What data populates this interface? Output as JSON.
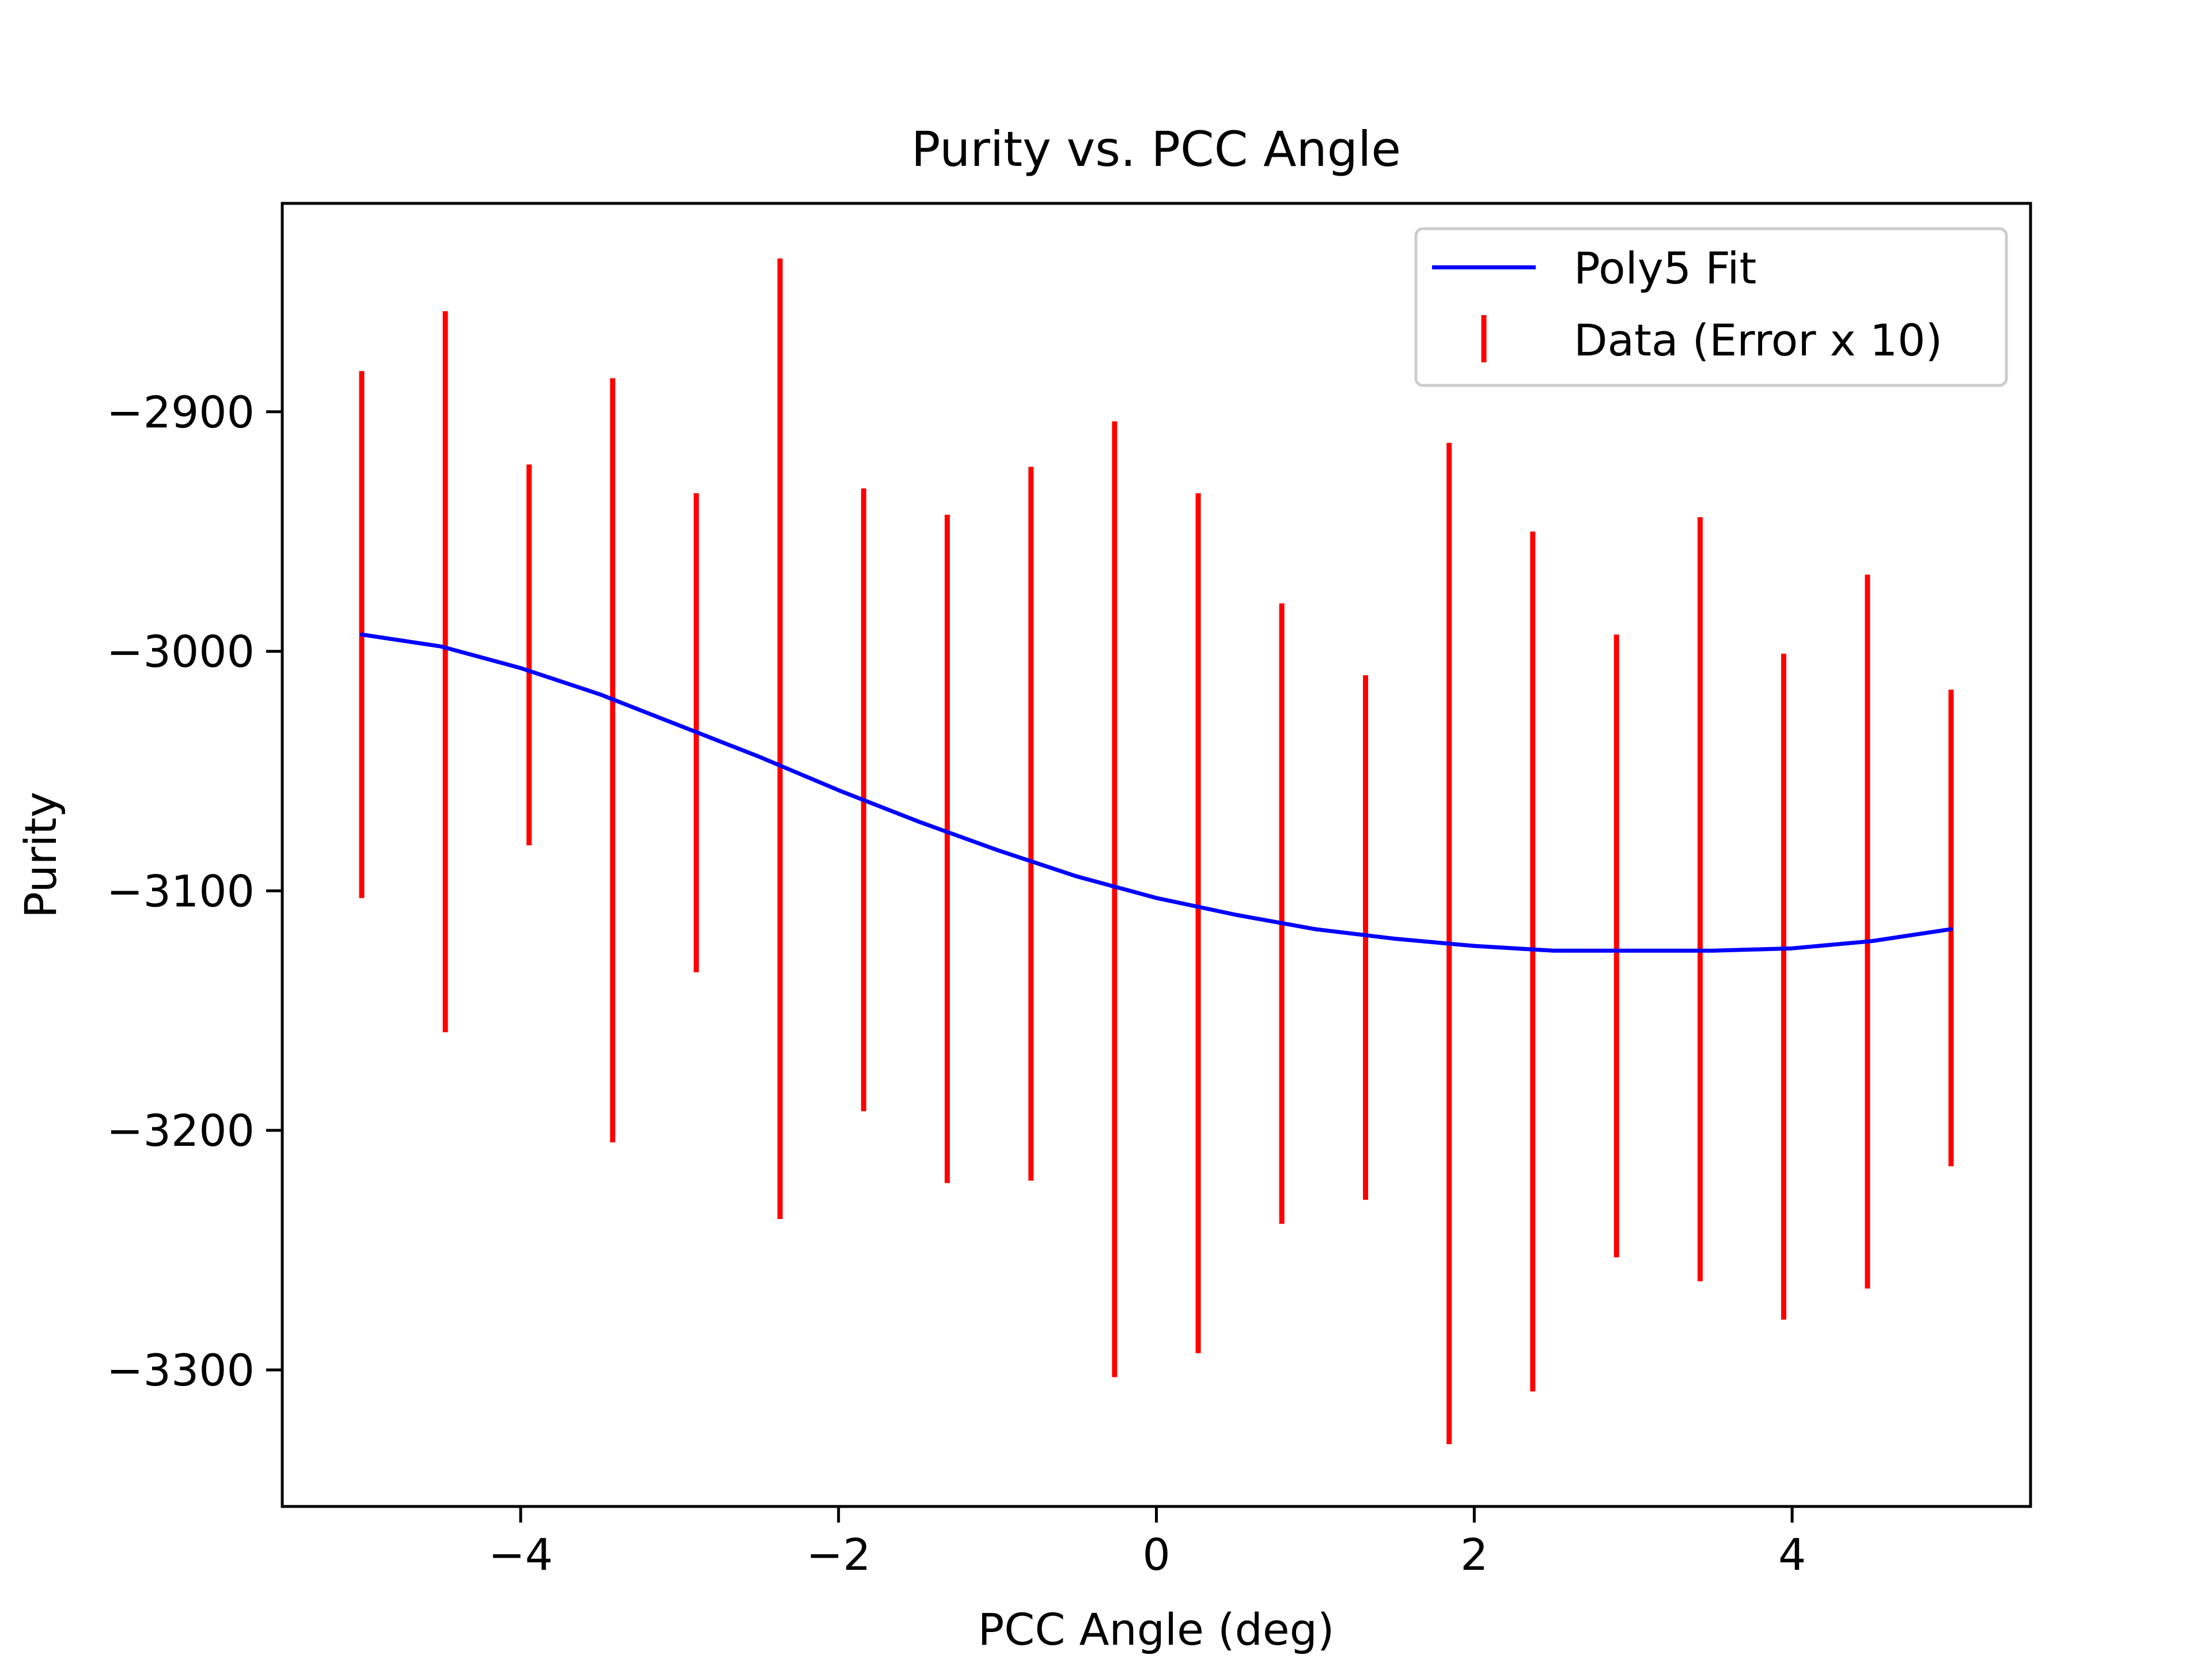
{
  "chart_data": {
    "type": "line",
    "title": "Purity vs. PCC Angle",
    "xlabel": "PCC Angle (deg)",
    "ylabel": "Purity",
    "xlim": [
      -5.5,
      5.5
    ],
    "ylim": [
      -3357,
      -2813
    ],
    "x_ticks": [
      -4,
      -2,
      0,
      2,
      4
    ],
    "x_tick_labels": [
      "−4",
      "−2",
      "0",
      "2",
      "4"
    ],
    "y_ticks": [
      -3300,
      -3200,
      -3100,
      -3000,
      -2900
    ],
    "y_tick_labels": [
      "−3300",
      "−3200",
      "−3100",
      "−3000",
      "−2900"
    ],
    "grid": false,
    "legend": {
      "placement": "upper right",
      "entries": [
        "Poly5 Fit",
        "Data (Error x 10)"
      ]
    },
    "colors": {
      "fit": "#0000ff",
      "data": "#ff0000"
    },
    "series": [
      {
        "name": "Poly5 Fit",
        "kind": "line",
        "x": [
          -5.0,
          -4.5,
          -4.0,
          -3.5,
          -3.0,
          -2.5,
          -2.0,
          -1.5,
          -1.0,
          -0.5,
          0.0,
          0.5,
          1.0,
          1.5,
          2.0,
          2.5,
          3.0,
          3.5,
          4.0,
          4.5,
          5.0
        ],
        "y": [
          -2993,
          -2998,
          -3007,
          -3018,
          -3031,
          -3044,
          -3058,
          -3071,
          -3083,
          -3094,
          -3103,
          -3110,
          -3116,
          -3120,
          -3123,
          -3125,
          -3125,
          -3125,
          -3124,
          -3121,
          -3116
        ]
      },
      {
        "name": "Data (Error x 10)",
        "kind": "errorbar",
        "x": [
          -5.0,
          -4.474,
          -3.947,
          -3.421,
          -2.895,
          -2.368,
          -1.842,
          -1.316,
          -0.789,
          -0.263,
          0.263,
          0.789,
          1.316,
          1.842,
          2.368,
          2.895,
          3.421,
          3.947,
          4.474,
          5.0
        ],
        "y_low": [
          -3103,
          -3159,
          -3081,
          -3205,
          -3134,
          -3237,
          -3192,
          -3222,
          -3221,
          -3303,
          -3293,
          -3239,
          -3229,
          -3331,
          -3309,
          -3253,
          -3263,
          -3279,
          -3266,
          -3215
        ],
        "y_high": [
          -2883,
          -2858,
          -2922,
          -2886,
          -2934,
          -2836,
          -2932,
          -2943,
          -2923,
          -2904,
          -2934,
          -2980,
          -3010,
          -2913,
          -2950,
          -2993,
          -2944,
          -3001,
          -2968,
          -3016
        ]
      }
    ]
  }
}
